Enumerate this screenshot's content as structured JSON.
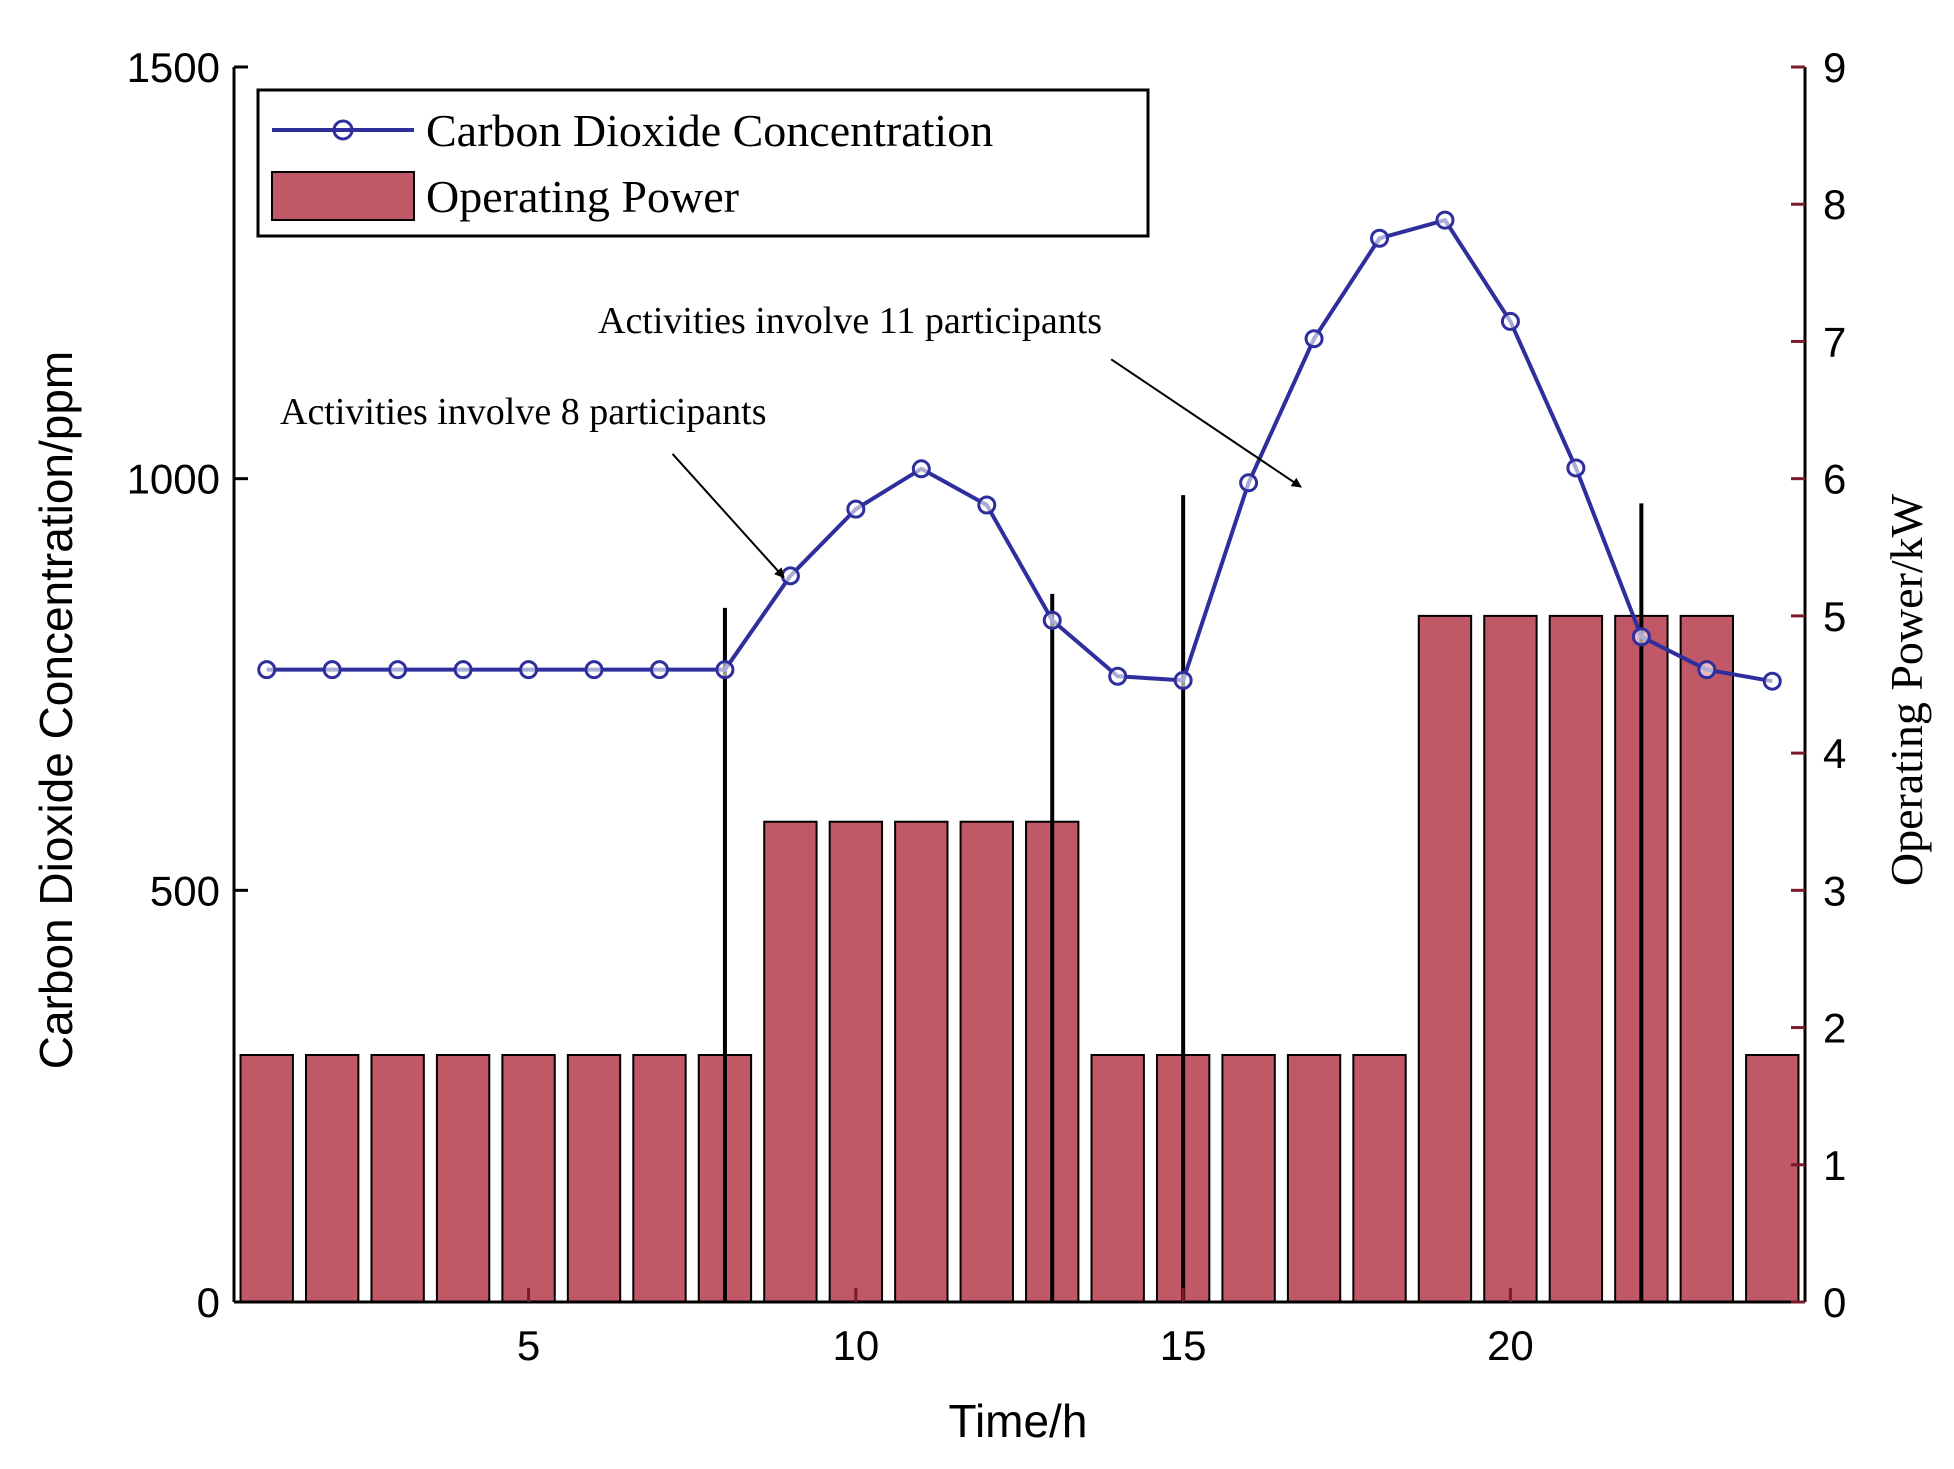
{
  "chart_data": {
    "type": "bar",
    "xlabel": "Time/h",
    "ylabel_left": "Carbon Dioxide Concentration/ppm",
    "ylabel_right": "Operating Power/kW",
    "xlim": [
      0.5,
      24.5
    ],
    "ylim_left": [
      0,
      1500
    ],
    "ylim_right": [
      0,
      9
    ],
    "xticks": [
      5,
      10,
      15,
      20
    ],
    "yticks_left": [
      0,
      500,
      1000,
      1500
    ],
    "yticks_right": [
      0,
      1,
      2,
      3,
      4,
      5,
      6,
      7,
      8,
      9
    ],
    "grid": false,
    "legend_position": "top-left",
    "colors": {
      "line": "#2e2e9c",
      "bar_fill": "#c05868",
      "bar_edge": "#000000",
      "axis": "#000000",
      "tick_mark": "#7a1b2b"
    },
    "series": [
      {
        "name": "Carbon Dioxide Concentration",
        "type": "line",
        "axis": "left",
        "marker": "circle",
        "x": [
          1,
          2,
          3,
          4,
          5,
          6,
          7,
          8,
          9,
          10,
          11,
          12,
          13,
          14,
          15,
          16,
          17,
          18,
          19,
          20,
          21,
          22,
          23,
          24
        ],
        "values": [
          768,
          768,
          768,
          768,
          768,
          768,
          768,
          768,
          882,
          963,
          1012,
          968,
          828,
          760,
          755,
          995,
          1170,
          1292,
          1314,
          1191,
          1013,
          808,
          768,
          754
        ]
      },
      {
        "name": "Operating Power",
        "type": "bar",
        "axis": "right",
        "x": [
          1,
          2,
          3,
          4,
          5,
          6,
          7,
          8,
          9,
          10,
          11,
          12,
          13,
          14,
          15,
          16,
          17,
          18,
          19,
          20,
          21,
          22,
          23,
          24
        ],
        "values": [
          1.8,
          1.8,
          1.8,
          1.8,
          1.8,
          1.8,
          1.8,
          1.8,
          3.5,
          3.5,
          3.5,
          3.5,
          3.5,
          1.8,
          1.8,
          1.8,
          1.8,
          1.8,
          5.0,
          5.0,
          5.0,
          5.0,
          5.0,
          1.8
        ]
      }
    ],
    "vertical_markers": [
      {
        "x": 8,
        "y_top_left": 843
      },
      {
        "x": 13,
        "y_top_left": 860
      },
      {
        "x": 15,
        "y_top_left": 980
      },
      {
        "x": 22,
        "y_top_left": 970
      }
    ],
    "annotations": [
      {
        "text": "Activities involve 8 participants",
        "arrow_from": [
          7.2,
          1030
        ],
        "arrow_to": [
          8.9,
          880
        ]
      },
      {
        "text": "Activities involve 11 participants",
        "arrow_from": [
          13.9,
          1145
        ],
        "arrow_to": [
          16.8,
          990
        ]
      }
    ]
  }
}
